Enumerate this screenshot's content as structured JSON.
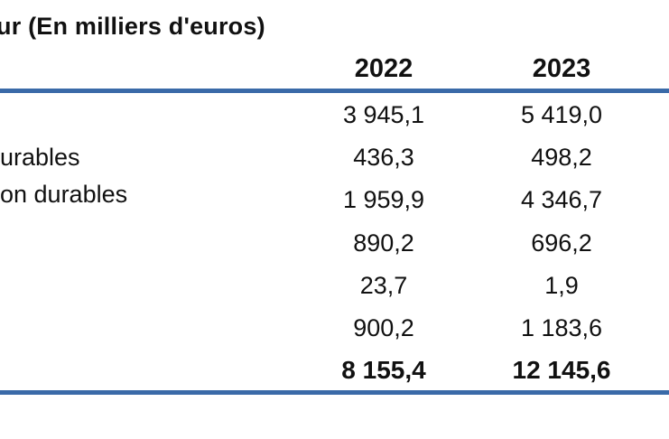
{
  "table": {
    "title": "ur (En milliers d'euros)",
    "columns": [
      "2022",
      "2023"
    ],
    "rows": [
      {
        "label": "",
        "v2022": "3 945,1",
        "v2023": "5 419,0"
      },
      {
        "label": "urables",
        "v2022": "436,3",
        "v2023": "498,2"
      },
      {
        "label": "on durables",
        "v2022": "1 959,9",
        "v2023": "4 346,7"
      },
      {
        "label": "",
        "v2022": "890,2",
        "v2023": "696,2"
      },
      {
        "label": "",
        "v2022": "23,7",
        "v2023": "1,9"
      },
      {
        "label": "",
        "v2022": "900,2",
        "v2023": "1 183,6"
      }
    ],
    "total": {
      "v2022": "8 155,4",
      "v2023": "12 145,6"
    },
    "rule_color": "#3a6aa8"
  }
}
